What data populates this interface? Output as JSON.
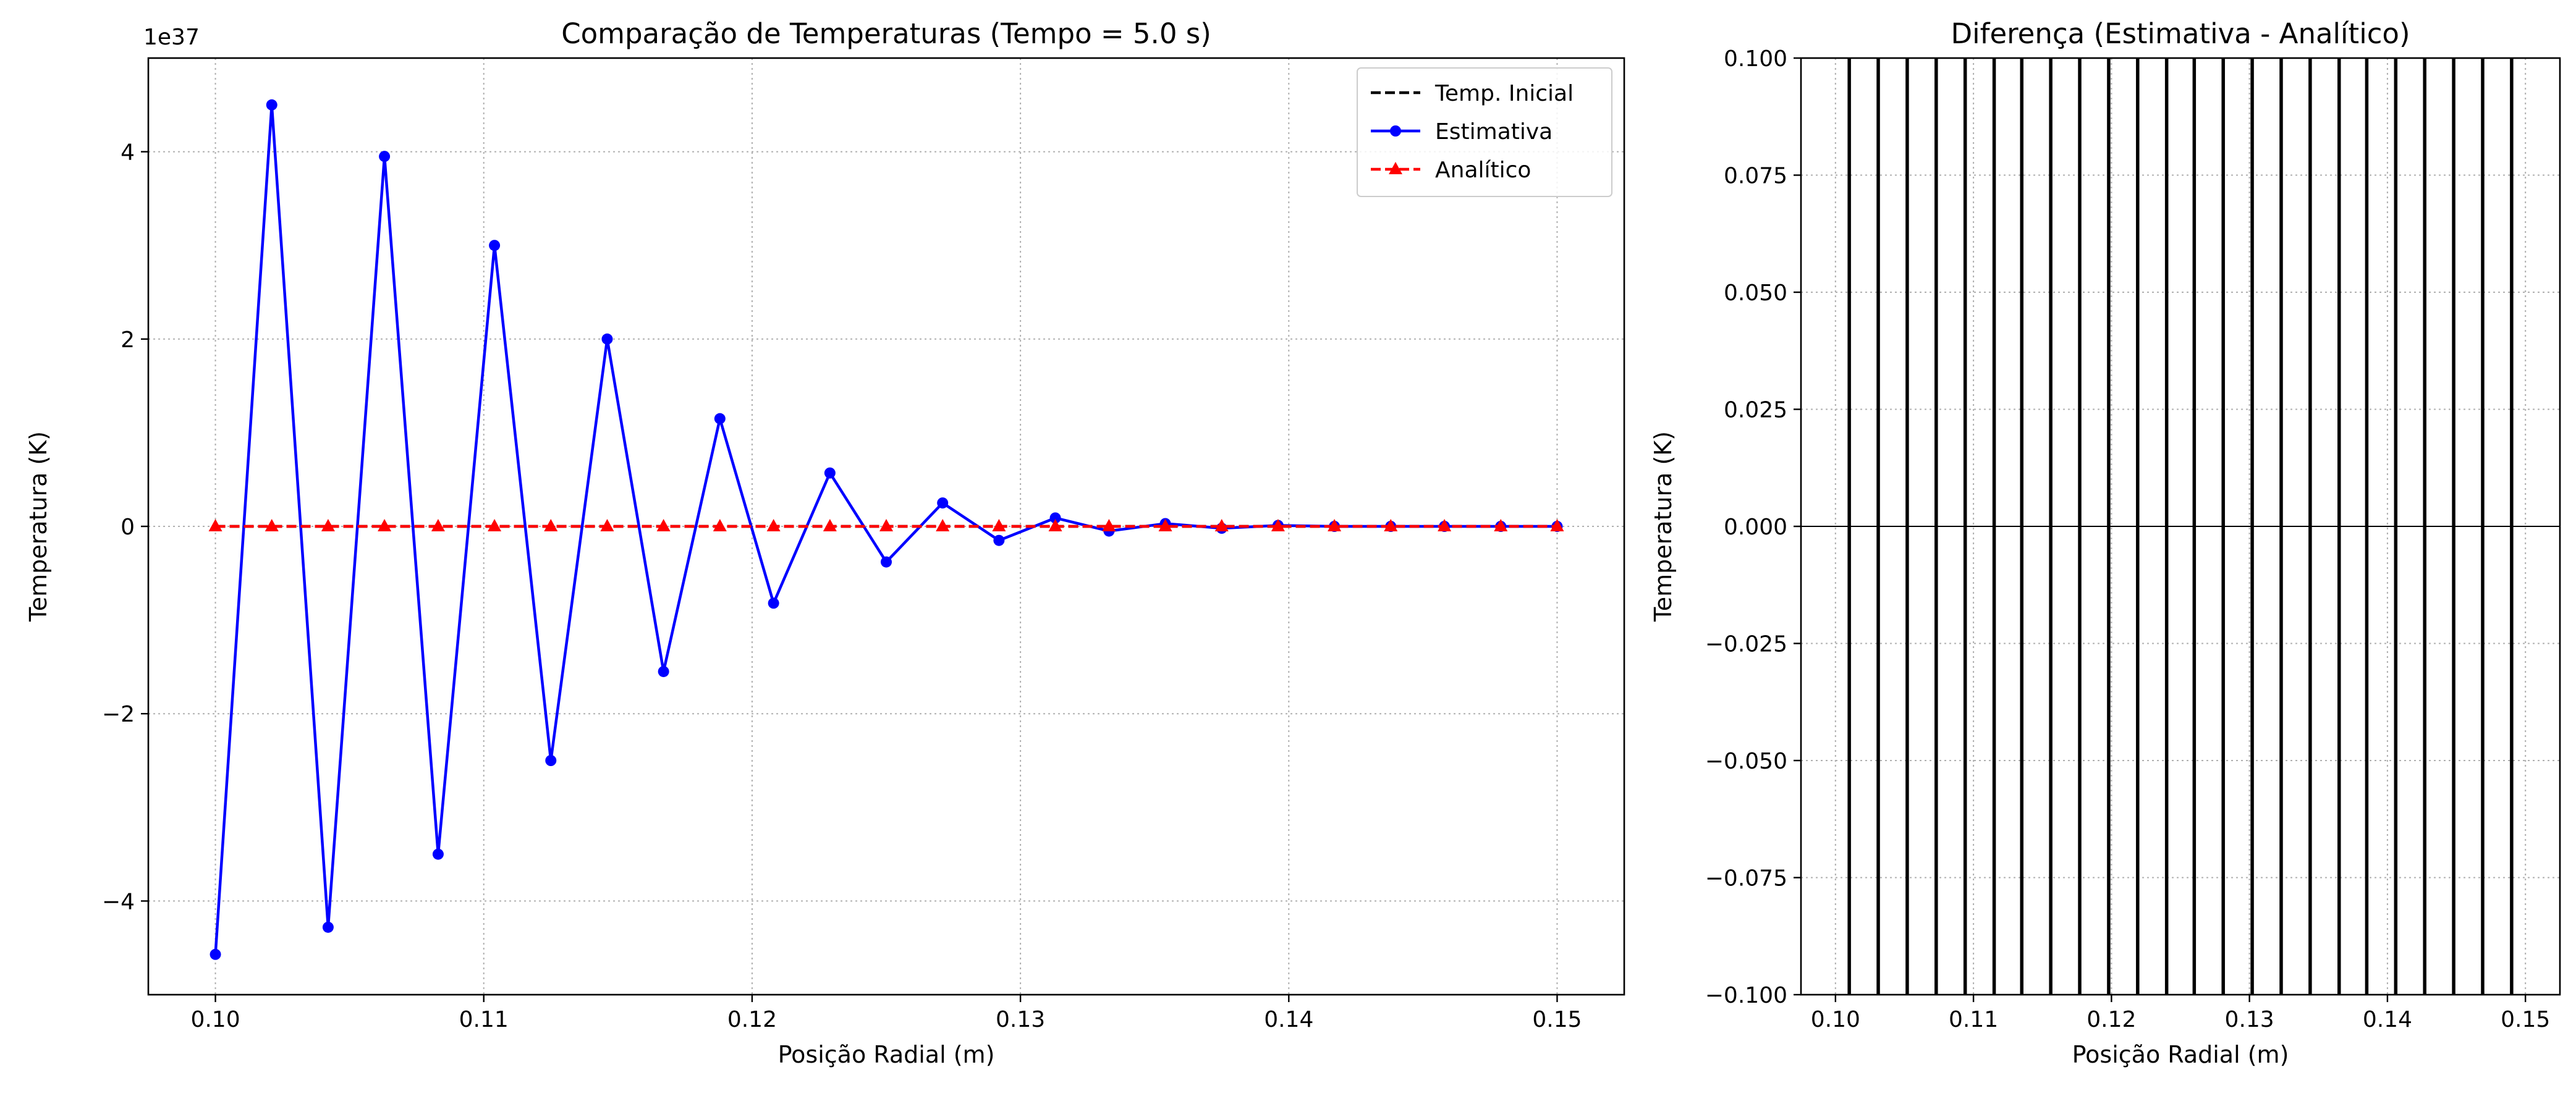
{
  "chart_data": [
    {
      "type": "line",
      "title": "Comparação de Temperaturas (Tempo = 5.0 s)",
      "xlabel": "Posição Radial (m)",
      "ylabel": "Temperatura (K)",
      "y_offset_label": "1e37",
      "xlim": [
        0.0975,
        0.1525
      ],
      "ylim": [
        -5.0,
        5.0
      ],
      "y_unit_multiplier": 1e+37,
      "grid": true,
      "legend_position": "top-right",
      "xticks": [
        {
          "value": 0.1,
          "label": "0.10"
        },
        {
          "value": 0.11,
          "label": "0.11"
        },
        {
          "value": 0.12,
          "label": "0.12"
        },
        {
          "value": 0.13,
          "label": "0.13"
        },
        {
          "value": 0.14,
          "label": "0.14"
        },
        {
          "value": 0.15,
          "label": "0.15"
        }
      ],
      "yticks": [
        {
          "value": -4,
          "label": "−4"
        },
        {
          "value": -2,
          "label": "−2"
        },
        {
          "value": 0,
          "label": "0"
        },
        {
          "value": 2,
          "label": "2"
        },
        {
          "value": 4,
          "label": "4"
        }
      ],
      "series": [
        {
          "name": "Temp. Inicial",
          "color": "#000000",
          "style": "dashed",
          "marker": "none",
          "x": [
            0.1,
            0.15
          ],
          "y": [
            0,
            0
          ]
        },
        {
          "name": "Estimativa",
          "color": "#0000ff",
          "style": "solid",
          "marker": "circle",
          "x": [
            0.1,
            0.1021,
            0.1042,
            0.1063,
            0.1083,
            0.1104,
            0.1125,
            0.1146,
            0.1167,
            0.1188,
            0.1208,
            0.1229,
            0.125,
            0.1271,
            0.1292,
            0.1313,
            0.1333,
            0.1354,
            0.1375,
            0.1396,
            0.1417,
            0.1438,
            0.1458,
            0.1479,
            0.15
          ],
          "y": [
            -4.57,
            4.5,
            -4.28,
            3.95,
            -3.5,
            3.0,
            -2.5,
            2.0,
            -1.55,
            1.15,
            -0.82,
            0.57,
            -0.38,
            0.25,
            -0.15,
            0.09,
            -0.05,
            0.03,
            -0.02,
            0.01,
            0.0,
            0.0,
            0.0,
            0.0,
            0.0
          ]
        },
        {
          "name": "Analítico",
          "color": "#ff0000",
          "style": "dashed",
          "marker": "triangle",
          "x": [
            0.1,
            0.1021,
            0.1042,
            0.1063,
            0.1083,
            0.1104,
            0.1125,
            0.1146,
            0.1167,
            0.1188,
            0.1208,
            0.1229,
            0.125,
            0.1271,
            0.1292,
            0.1313,
            0.1333,
            0.1354,
            0.1375,
            0.1396,
            0.1417,
            0.1438,
            0.1458,
            0.1479,
            0.15
          ],
          "y": [
            0,
            0,
            0,
            0,
            0,
            0,
            0,
            0,
            0,
            0,
            0,
            0,
            0,
            0,
            0,
            0,
            0,
            0,
            0,
            0,
            0,
            0,
            0,
            0,
            0
          ]
        }
      ]
    },
    {
      "type": "line",
      "title": "Diferença (Estimativa - Analítico)",
      "xlabel": "Posição Radial (m)",
      "ylabel": "Temperatura (K)",
      "xlim": [
        0.0975,
        0.1525
      ],
      "ylim": [
        -0.1,
        0.1
      ],
      "grid": true,
      "xticks": [
        {
          "value": 0.1,
          "label": "0.10"
        },
        {
          "value": 0.11,
          "label": "0.11"
        },
        {
          "value": 0.12,
          "label": "0.12"
        },
        {
          "value": 0.13,
          "label": "0.13"
        },
        {
          "value": 0.14,
          "label": "0.14"
        },
        {
          "value": 0.15,
          "label": "0.15"
        }
      ],
      "yticks": [
        {
          "value": -0.1,
          "label": "−0.100"
        },
        {
          "value": -0.075,
          "label": "−0.075"
        },
        {
          "value": -0.05,
          "label": "−0.050"
        },
        {
          "value": -0.025,
          "label": "−0.025"
        },
        {
          "value": 0.0,
          "label": "0.000"
        },
        {
          "value": 0.025,
          "label": "0.025"
        },
        {
          "value": 0.05,
          "label": "0.050"
        },
        {
          "value": 0.075,
          "label": "0.075"
        },
        {
          "value": 0.1,
          "label": "0.100"
        }
      ],
      "zero_line": true,
      "series": [
        {
          "color": "#000000",
          "style": "solid",
          "x": [
            0.101,
            0.1031,
            0.1052,
            0.1073,
            0.1094,
            0.1115,
            0.1135,
            0.1156,
            0.1177,
            0.1198,
            0.1219,
            0.124,
            0.126,
            0.1281,
            0.1302,
            0.1323,
            0.1344,
            0.1365,
            0.1385,
            0.1406,
            0.1427,
            0.1448,
            0.1469,
            0.149
          ],
          "y_extends_beyond_axis": true
        }
      ]
    }
  ]
}
